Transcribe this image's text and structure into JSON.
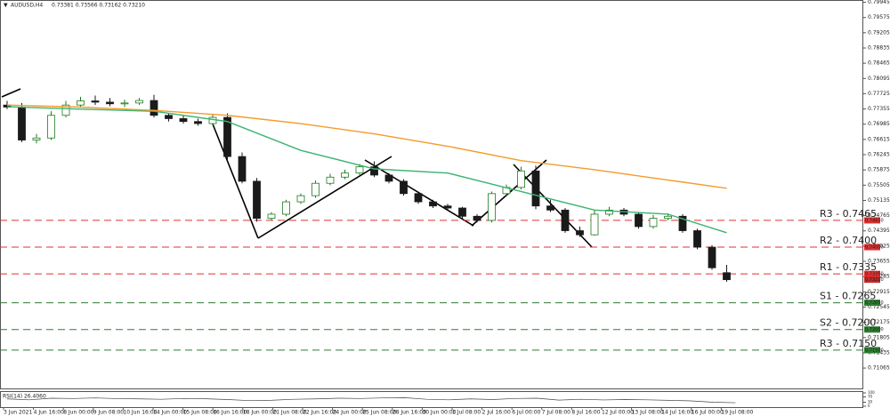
{
  "chart_data": {
    "type": "candlestick",
    "title": "AUDUSD,H4",
    "ohlc_header": "0.73381 0.73566 0.73162 0.73210",
    "ylim": [
      0.7057,
      0.8
    ],
    "yticks": [
      0.79945,
      0.79575,
      0.79205,
      0.78835,
      0.78465,
      0.78095,
      0.77725,
      0.77355,
      0.76985,
      0.76615,
      0.76245,
      0.75875,
      0.75505,
      0.75135,
      0.74765,
      0.74395,
      0.74025,
      0.73655,
      0.73285,
      0.72915,
      0.72545,
      0.72175,
      0.71805,
      0.71435,
      0.71065
    ],
    "x_labels": [
      "3 Jun 2021",
      "4 Jun 16:00",
      "8 Jun 00:00",
      "9 Jun 08:00",
      "10 Jun 16:00",
      "14 Jun 00:00",
      "15 Jun 08:00",
      "16 Jun 16:00",
      "18 Jun 00:00",
      "21 Jun 08:00",
      "22 Jun 16:00",
      "24 Jun 00:00",
      "25 Jun 08:00",
      "28 Jun 16:00",
      "30 Jun 00:00",
      "1 Jul 08:00",
      "2 Jul 16:00",
      "6 Jul 00:00",
      "7 Jul 08:00",
      "8 Jul 16:00",
      "12 Jul 00:00",
      "13 Jul 08:00",
      "14 Jul 16:00",
      "16 Jul 00:00",
      "19 Jul 08:00"
    ],
    "up_color": "#1e7b1e",
    "down_color": "#1a1a1a",
    "open": [
      0.7745,
      0.774,
      0.766,
      0.7665,
      0.772,
      0.7745,
      0.7755,
      0.7752,
      0.7748,
      0.775,
      0.7756,
      0.772,
      0.7712,
      0.7705,
      0.77,
      0.7715,
      0.762,
      0.756,
      0.747,
      0.748,
      0.751,
      0.7525,
      0.7555,
      0.757,
      0.758,
      0.7595,
      0.7575,
      0.756,
      0.753,
      0.751,
      0.75,
      0.7495,
      0.7475,
      0.7465,
      0.753,
      0.7545,
      0.7585,
      0.75,
      0.749,
      0.744,
      0.743,
      0.748,
      0.749,
      0.748,
      0.745,
      0.747,
      0.7475,
      0.744,
      0.74,
      0.7338
    ],
    "high": [
      0.7755,
      0.775,
      0.7675,
      0.773,
      0.7755,
      0.7765,
      0.7768,
      0.7762,
      0.7758,
      0.7762,
      0.777,
      0.7725,
      0.772,
      0.7712,
      0.7722,
      0.7725,
      0.763,
      0.7568,
      0.7485,
      0.7515,
      0.753,
      0.7562,
      0.7578,
      0.7588,
      0.7602,
      0.7608,
      0.758,
      0.7565,
      0.7535,
      0.7515,
      0.7505,
      0.7498,
      0.748,
      0.7535,
      0.7552,
      0.7595,
      0.7598,
      0.7515,
      0.7495,
      0.745,
      0.749,
      0.7498,
      0.7495,
      0.7485,
      0.7478,
      0.7482,
      0.748,
      0.7445,
      0.7405,
      0.7357
    ],
    "low": [
      0.7735,
      0.7655,
      0.7652,
      0.766,
      0.7715,
      0.774,
      0.7745,
      0.7742,
      0.774,
      0.7745,
      0.7715,
      0.7705,
      0.77,
      0.7695,
      0.7695,
      0.7612,
      0.7555,
      0.7462,
      0.7465,
      0.7475,
      0.7505,
      0.752,
      0.755,
      0.7565,
      0.7575,
      0.757,
      0.7555,
      0.7525,
      0.7505,
      0.7495,
      0.749,
      0.747,
      0.746,
      0.746,
      0.7525,
      0.754,
      0.7492,
      0.7485,
      0.7435,
      0.7425,
      0.7428,
      0.7475,
      0.7475,
      0.7445,
      0.7445,
      0.7465,
      0.7435,
      0.7395,
      0.7345,
      0.7316
    ],
    "close": [
      0.774,
      0.766,
      0.7665,
      0.772,
      0.7745,
      0.7755,
      0.7752,
      0.7748,
      0.775,
      0.7756,
      0.772,
      0.7712,
      0.7705,
      0.77,
      0.7715,
      0.762,
      0.756,
      0.747,
      0.748,
      0.751,
      0.7525,
      0.7555,
      0.757,
      0.758,
      0.7595,
      0.7575,
      0.756,
      0.753,
      0.751,
      0.75,
      0.7495,
      0.7475,
      0.7465,
      0.753,
      0.7545,
      0.7585,
      0.75,
      0.749,
      0.744,
      0.743,
      0.748,
      0.749,
      0.748,
      0.745,
      0.747,
      0.7475,
      0.744,
      0.74,
      0.735,
      0.7321
    ],
    "moving_averages": [
      {
        "color": "#3cb371",
        "x": [
          0,
          5,
          10,
          15,
          20,
          25,
          30,
          35,
          40,
          45,
          49
        ],
        "values": [
          0.7741,
          0.7735,
          0.773,
          0.7705,
          0.7635,
          0.759,
          0.758,
          0.7535,
          0.749,
          0.748,
          0.7435
        ]
      },
      {
        "color": "#f39c2b",
        "x": [
          0,
          5,
          10,
          15,
          20,
          25,
          30,
          35,
          40,
          45,
          49
        ],
        "values": [
          0.7745,
          0.774,
          0.7732,
          0.772,
          0.77,
          0.7675,
          0.7645,
          0.761,
          0.7588,
          0.7563,
          0.7543
        ]
      }
    ],
    "levels": [
      {
        "label": "R3 - 0.7465",
        "value": 0.7465,
        "tag": "0.74650",
        "color": "#e03030"
      },
      {
        "label": "R2 - 0.7400",
        "value": 0.74,
        "tag": "0.74000",
        "color": "#e03030"
      },
      {
        "label": "R1 - 0.7335",
        "value": 0.7335,
        "tag": "0.73350",
        "color": "#e03030"
      },
      {
        "label": "S1 - 0.7265",
        "value": 0.7265,
        "tag": "0.72650",
        "color": "#2e7d32"
      },
      {
        "label": "S2 - 0.7200",
        "value": 0.72,
        "tag": "0.72000",
        "color": "#2e7d32"
      },
      {
        "label": "R3 - 0.7150",
        "value": 0.715,
        "tag": "0.71500",
        "color": "#2e7d32"
      }
    ],
    "price_tag": {
      "label": "0.73210",
      "value": 0.7321
    },
    "rsi": {
      "title": "RSI(14) 26.4060",
      "ylim": [
        0,
        100
      ],
      "yticks": [
        100,
        70,
        30,
        0
      ],
      "values": [
        55,
        48,
        60,
        58,
        62,
        57,
        55,
        52,
        58,
        56,
        50,
        42,
        45,
        52,
        55,
        60,
        58,
        62,
        64,
        52,
        48,
        55,
        50,
        58,
        60,
        46,
        52,
        47,
        50,
        48,
        44,
        40,
        30,
        26.406
      ]
    }
  }
}
